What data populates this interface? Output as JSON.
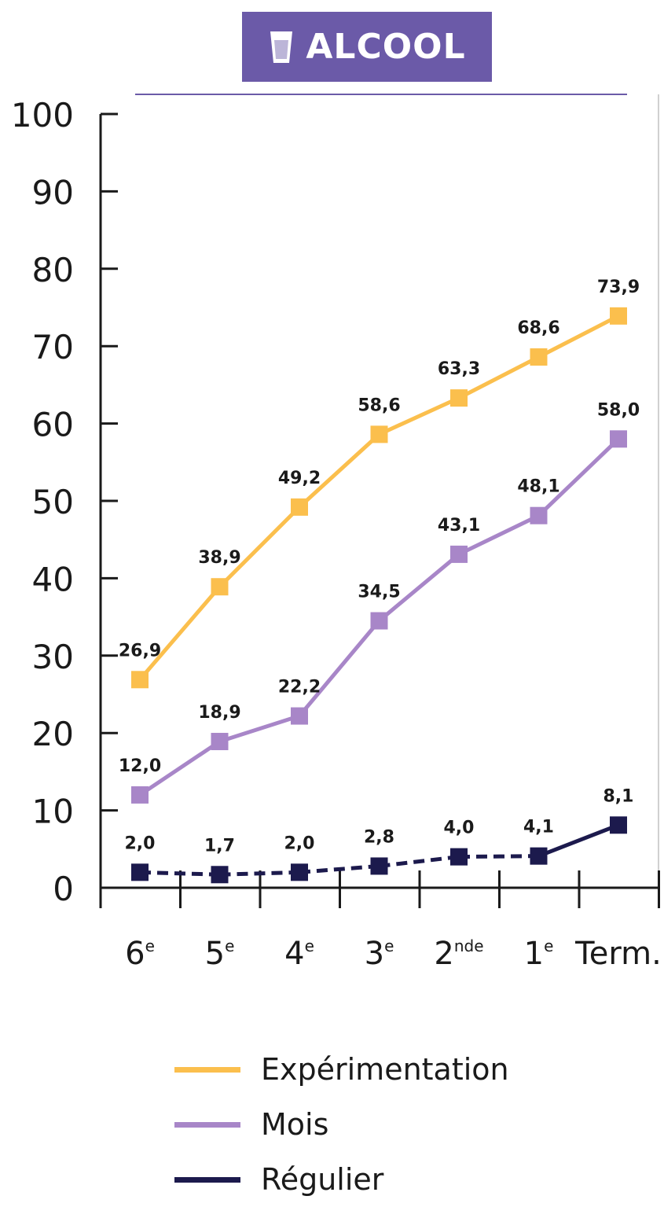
{
  "header": {
    "title": "ALCOOL",
    "icon": "glass-icon",
    "color": "#6b5aa8"
  },
  "chart_data": {
    "type": "line",
    "categories": [
      {
        "base": "6",
        "sup": "e"
      },
      {
        "base": "5",
        "sup": "e"
      },
      {
        "base": "4",
        "sup": "e"
      },
      {
        "base": "3",
        "sup": "e"
      },
      {
        "base": "2",
        "sup": "nde"
      },
      {
        "base": "1",
        "sup": "e"
      },
      {
        "base": "Term.",
        "sup": ""
      }
    ],
    "ylim": [
      0,
      100
    ],
    "yticks": [
      0,
      10,
      20,
      30,
      40,
      50,
      60,
      70,
      80,
      90,
      100
    ],
    "series": [
      {
        "name": "Expérimentation",
        "color": "#fbbf4d",
        "values": [
          26.9,
          38.9,
          49.2,
          58.6,
          63.3,
          68.6,
          73.9
        ],
        "labels": [
          "26,9",
          "38,9",
          "49,2",
          "58,6",
          "63,3",
          "68,6",
          "73,9"
        ]
      },
      {
        "name": "Mois",
        "color": "#a886c8",
        "values": [
          12.0,
          18.9,
          22.2,
          34.5,
          43.1,
          48.1,
          58.0
        ],
        "labels": [
          "12,0",
          "18,9",
          "22,2",
          "34,5",
          "43,1",
          "48,1",
          "58,0"
        ]
      },
      {
        "name": "Régulier",
        "color": "#1c1a4d",
        "dashed_until_index": 5,
        "values": [
          2.0,
          1.7,
          2.0,
          2.8,
          4.0,
          4.1,
          8.1
        ],
        "labels": [
          "2,0",
          "1,7",
          "2,0",
          "2,8",
          "4,0",
          "4,1",
          "8,1"
        ]
      }
    ],
    "legend_position": "bottom"
  }
}
